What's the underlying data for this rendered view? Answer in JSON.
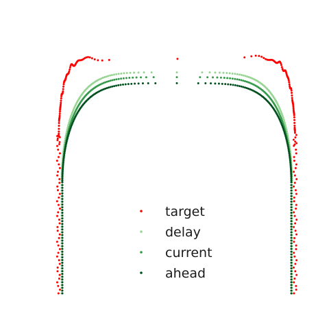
{
  "chart_data": {
    "type": "scatter",
    "title": "",
    "xlabel": "",
    "ylabel": "",
    "xlim": [
      0,
      1
    ],
    "ylim": [
      0,
      1.05
    ],
    "axes_visible": false,
    "grid": false,
    "legend_position": "lower-center",
    "series": [
      {
        "name": "target",
        "color": "#ff0000",
        "shape": "cap",
        "params": {
          "xc": 0.5,
          "a": 0.496,
          "base": 0.61,
          "h": 0.365,
          "n": 0.14,
          "wobble": 0.011
        }
      },
      {
        "name": "delay",
        "color": "#98d594",
        "shape": "cap",
        "params": {
          "xc": 0.5,
          "a": 0.483,
          "base": 0.46,
          "h": 0.455,
          "n": 0.38,
          "wobble": 0.0
        }
      },
      {
        "name": "current",
        "color": "#35994a",
        "shape": "cap",
        "params": {
          "xc": 0.5,
          "a": 0.48,
          "base": 0.46,
          "h": 0.435,
          "n": 0.4,
          "wobble": 0.0
        }
      },
      {
        "name": "ahead",
        "color": "#00501f",
        "shape": "cap",
        "params": {
          "xc": 0.5,
          "a": 0.48,
          "base": 0.46,
          "h": 0.41,
          "n": 0.42,
          "wobble": 0.0
        }
      }
    ]
  }
}
